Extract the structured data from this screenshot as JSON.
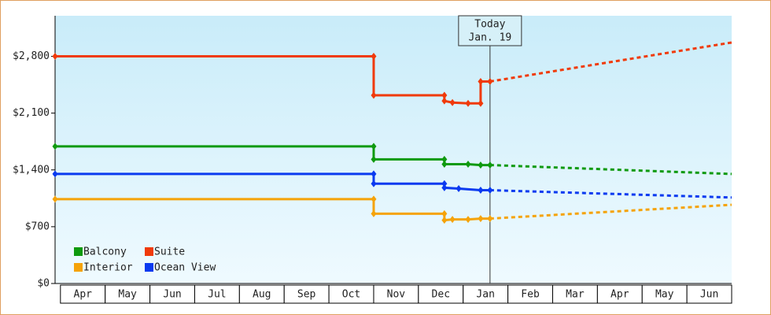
{
  "chart_data": {
    "type": "step-line",
    "ylim": [
      0,
      3300
    ],
    "yticks": [
      {
        "value": 0,
        "label": "$0"
      },
      {
        "value": 700,
        "label": "$700"
      },
      {
        "value": 1400,
        "label": "$1,400"
      },
      {
        "value": 2100,
        "label": "$2,100"
      },
      {
        "value": 2800,
        "label": "$2,800"
      }
    ],
    "xlim": [
      -0.12,
      15.0
    ],
    "xticks": [
      {
        "value": 0.5,
        "label": "Apr"
      },
      {
        "value": 1.5,
        "label": "May"
      },
      {
        "value": 2.5,
        "label": "Jun"
      },
      {
        "value": 3.5,
        "label": "Jul"
      },
      {
        "value": 4.5,
        "label": "Aug"
      },
      {
        "value": 5.5,
        "label": "Sep"
      },
      {
        "value": 6.5,
        "label": "Oct"
      },
      {
        "value": 7.5,
        "label": "Nov"
      },
      {
        "value": 8.5,
        "label": "Dec"
      },
      {
        "value": 9.5,
        "label": "Jan"
      },
      {
        "value": 10.5,
        "label": "Feb"
      },
      {
        "value": 11.5,
        "label": "Mar"
      },
      {
        "value": 12.5,
        "label": "Apr"
      },
      {
        "value": 13.5,
        "label": "May"
      },
      {
        "value": 14.5,
        "label": "Jun"
      }
    ],
    "today_x": 9.6,
    "today_label": "Today",
    "today_date": "Jan. 19",
    "series": [
      {
        "name": "Balcony",
        "color": "#0f9a0f",
        "x": [
          -0.12,
          7.0,
          7.0,
          8.58,
          8.58,
          9.11,
          9.39,
          9.6
        ],
        "values": [
          1690,
          1690,
          1530,
          1530,
          1470,
          1470,
          1460,
          1460
        ],
        "projection_x": [
          9.6,
          15.0
        ],
        "projection_values": [
          1460,
          1350
        ]
      },
      {
        "name": "Suite",
        "color": "#f03a0a",
        "x": [
          -0.12,
          7.0,
          7.0,
          8.58,
          8.58,
          8.76,
          9.11,
          9.39,
          9.39,
          9.6
        ],
        "values": [
          2800,
          2800,
          2320,
          2320,
          2250,
          2230,
          2220,
          2220,
          2490,
          2490
        ],
        "projection_x": [
          9.6,
          15.0
        ],
        "projection_values": [
          2490,
          2970
        ]
      },
      {
        "name": "Interior",
        "color": "#f5a30a",
        "x": [
          -0.12,
          7.0,
          7.0,
          8.58,
          8.58,
          8.76,
          9.11,
          9.39,
          9.6
        ],
        "values": [
          1040,
          1040,
          860,
          860,
          780,
          790,
          790,
          800,
          800
        ],
        "projection_x": [
          9.6,
          15.0
        ],
        "projection_values": [
          800,
          970
        ]
      },
      {
        "name": "Ocean View",
        "color": "#0a3af0",
        "x": [
          -0.12,
          7.0,
          7.0,
          8.58,
          8.58,
          8.9,
          9.39,
          9.6
        ],
        "values": [
          1350,
          1350,
          1230,
          1230,
          1180,
          1170,
          1150,
          1150
        ],
        "projection_x": [
          9.6,
          15.0
        ],
        "projection_values": [
          1150,
          1060
        ]
      }
    ]
  }
}
